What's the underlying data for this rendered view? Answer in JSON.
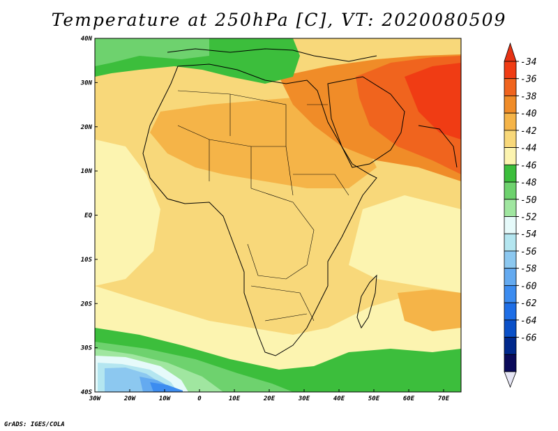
{
  "title": "Temperature at 250hPa [C], VT: 2020080509",
  "credit": "GrADS: IGES/COLA",
  "map": {
    "lat_labels": [
      "40N",
      "30N",
      "20N",
      "10N",
      "EQ",
      "10S",
      "20S",
      "30S",
      "40S"
    ],
    "lon_labels": [
      "30W",
      "20W",
      "10W",
      "0",
      "10E",
      "20E",
      "30E",
      "40E",
      "50E",
      "60E",
      "70E"
    ]
  },
  "colorbar": {
    "levels": [
      "-34",
      "-36",
      "-38",
      "-40",
      "-42",
      "-44",
      "-46",
      "-48",
      "-50",
      "-52",
      "-54",
      "-56",
      "-58",
      "-60",
      "-62",
      "-64",
      "-66"
    ],
    "colors": [
      "#f03c14",
      "#f0641e",
      "#f08c28",
      "#f5b448",
      "#f8d87a",
      "#fcf4b0",
      "#3cbe3c",
      "#6ed26e",
      "#a0e6a0",
      "#e6fafa",
      "#b4e6f0",
      "#8cc8f0",
      "#64aaf0",
      "#3c8cf0",
      "#1e6ee6",
      "#0a50c8",
      "#00288c",
      "#0a0a5a"
    ],
    "arrow_top_color": "#e63214",
    "arrow_bottom_color": "#e6e6f5"
  }
}
